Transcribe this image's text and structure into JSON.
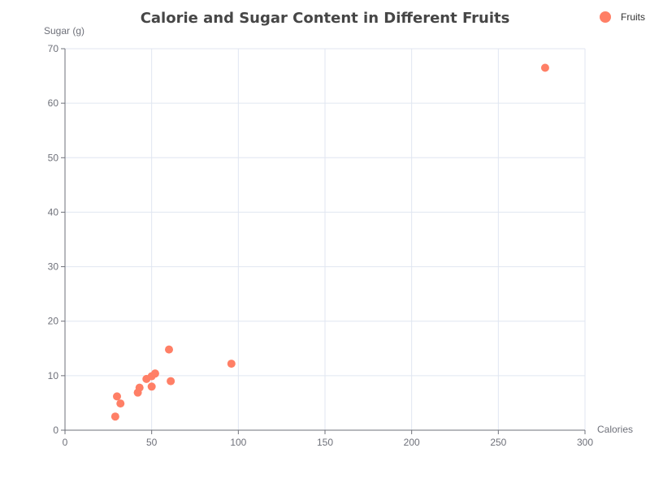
{
  "chart_data": {
    "type": "scatter",
    "title": "Calorie and Sugar Content in Different Fruits",
    "xlabel": "Calories",
    "ylabel": "Sugar (g)",
    "xlim": [
      0,
      300
    ],
    "ylim": [
      0,
      70
    ],
    "x_ticks": [
      0,
      50,
      100,
      150,
      200,
      250,
      300
    ],
    "y_ticks": [
      0,
      10,
      20,
      30,
      40,
      50,
      60,
      70
    ],
    "grid": true,
    "legend_position": "top-right",
    "series": [
      {
        "name": "Fruits",
        "color": "#ff7f66",
        "points": [
          {
            "x": 29,
            "y": 2.5
          },
          {
            "x": 30,
            "y": 6.2
          },
          {
            "x": 32,
            "y": 4.9
          },
          {
            "x": 42,
            "y": 6.9
          },
          {
            "x": 43,
            "y": 7.8
          },
          {
            "x": 47,
            "y": 9.4
          },
          {
            "x": 50,
            "y": 8.0
          },
          {
            "x": 50,
            "y": 9.9
          },
          {
            "x": 52,
            "y": 10.4
          },
          {
            "x": 60,
            "y": 14.8
          },
          {
            "x": 61,
            "y": 9.0
          },
          {
            "x": 96,
            "y": 12.2
          },
          {
            "x": 277,
            "y": 66.5
          }
        ]
      }
    ]
  }
}
